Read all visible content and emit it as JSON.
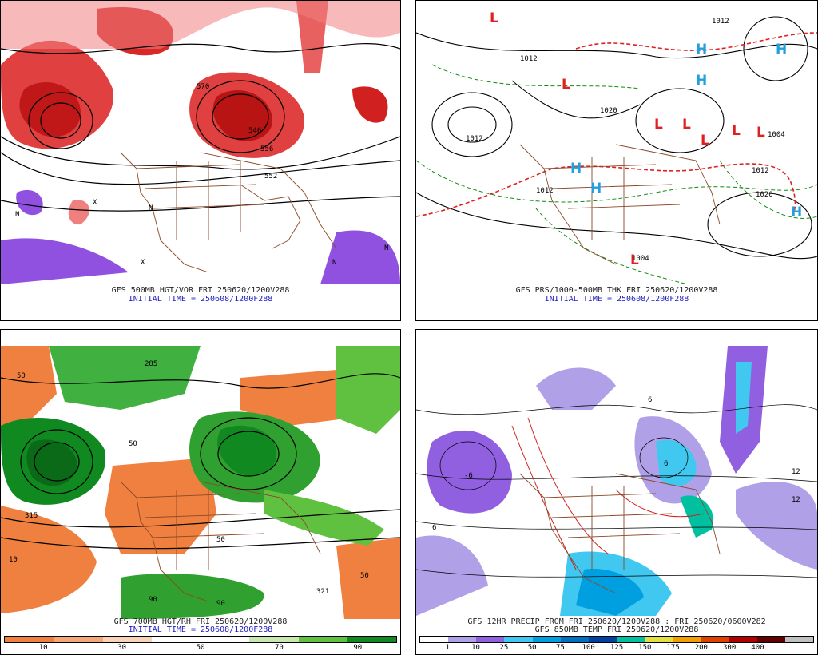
{
  "panels": [
    {
      "caption1": "GFS 500MB HGT/VOR FRI 250620/1200V288",
      "caption2": "INITIAL TIME = 250608/1200F288"
    },
    {
      "caption1": "GFS PRS/1000-500MB THK FRI 250620/1200V288",
      "caption2": "INITIAL TIME = 250608/1200F288"
    },
    {
      "caption1": "GFS 700MB HGT/RH FRI 250620/1200V288",
      "caption2": "INITIAL TIME = 250608/1200F288",
      "colorbar": {
        "colors": [
          "#f08040",
          "#f4a878",
          "#fad4b8",
          "#ffffff",
          "#ffffff",
          "#c8e8b0",
          "#60c040",
          "#108a20"
        ],
        "labels": [
          "10",
          "30",
          "50",
          "70",
          "90"
        ]
      }
    },
    {
      "caption1": "GFS 12HR PRECIP FROM FRI 250620/1200V288 : FRI 250620/0600V282",
      "caption2": "GFS 850MB TEMP FRI 250620/1200V288",
      "colorbar": {
        "colors": [
          "#ffffff",
          "#b0a0e8",
          "#9060e0",
          "#40c8f0",
          "#00a0e0",
          "#0070c0",
          "#0040a0",
          "#00c0a0",
          "#e0e040",
          "#f0a000",
          "#e04000",
          "#b00000",
          "#600000",
          "#c0c0c0"
        ],
        "labels": [
          "1",
          "10",
          "25",
          "50",
          "75",
          "100",
          "125",
          "150",
          "175",
          "200",
          "300",
          "400"
        ]
      }
    }
  ],
  "map_labels": {
    "p1": [
      "570",
      "546",
      "556",
      "552",
      "N",
      "N",
      "N",
      "X",
      "X",
      "N"
    ],
    "p2": [
      "1012",
      "1012",
      "1020",
      "1004",
      "1012",
      "1020",
      "1012",
      "1012",
      "1004",
      "L",
      "L",
      "L",
      "L",
      "L",
      "L",
      "L",
      "L",
      "H",
      "H",
      "H",
      "H",
      "H",
      "H"
    ],
    "p3": [
      "285",
      "50",
      "50",
      "90",
      "90",
      "321",
      "315",
      "50",
      "10",
      "50"
    ],
    "p4": [
      "-6",
      "6",
      "12",
      "6",
      "12",
      "6"
    ]
  }
}
